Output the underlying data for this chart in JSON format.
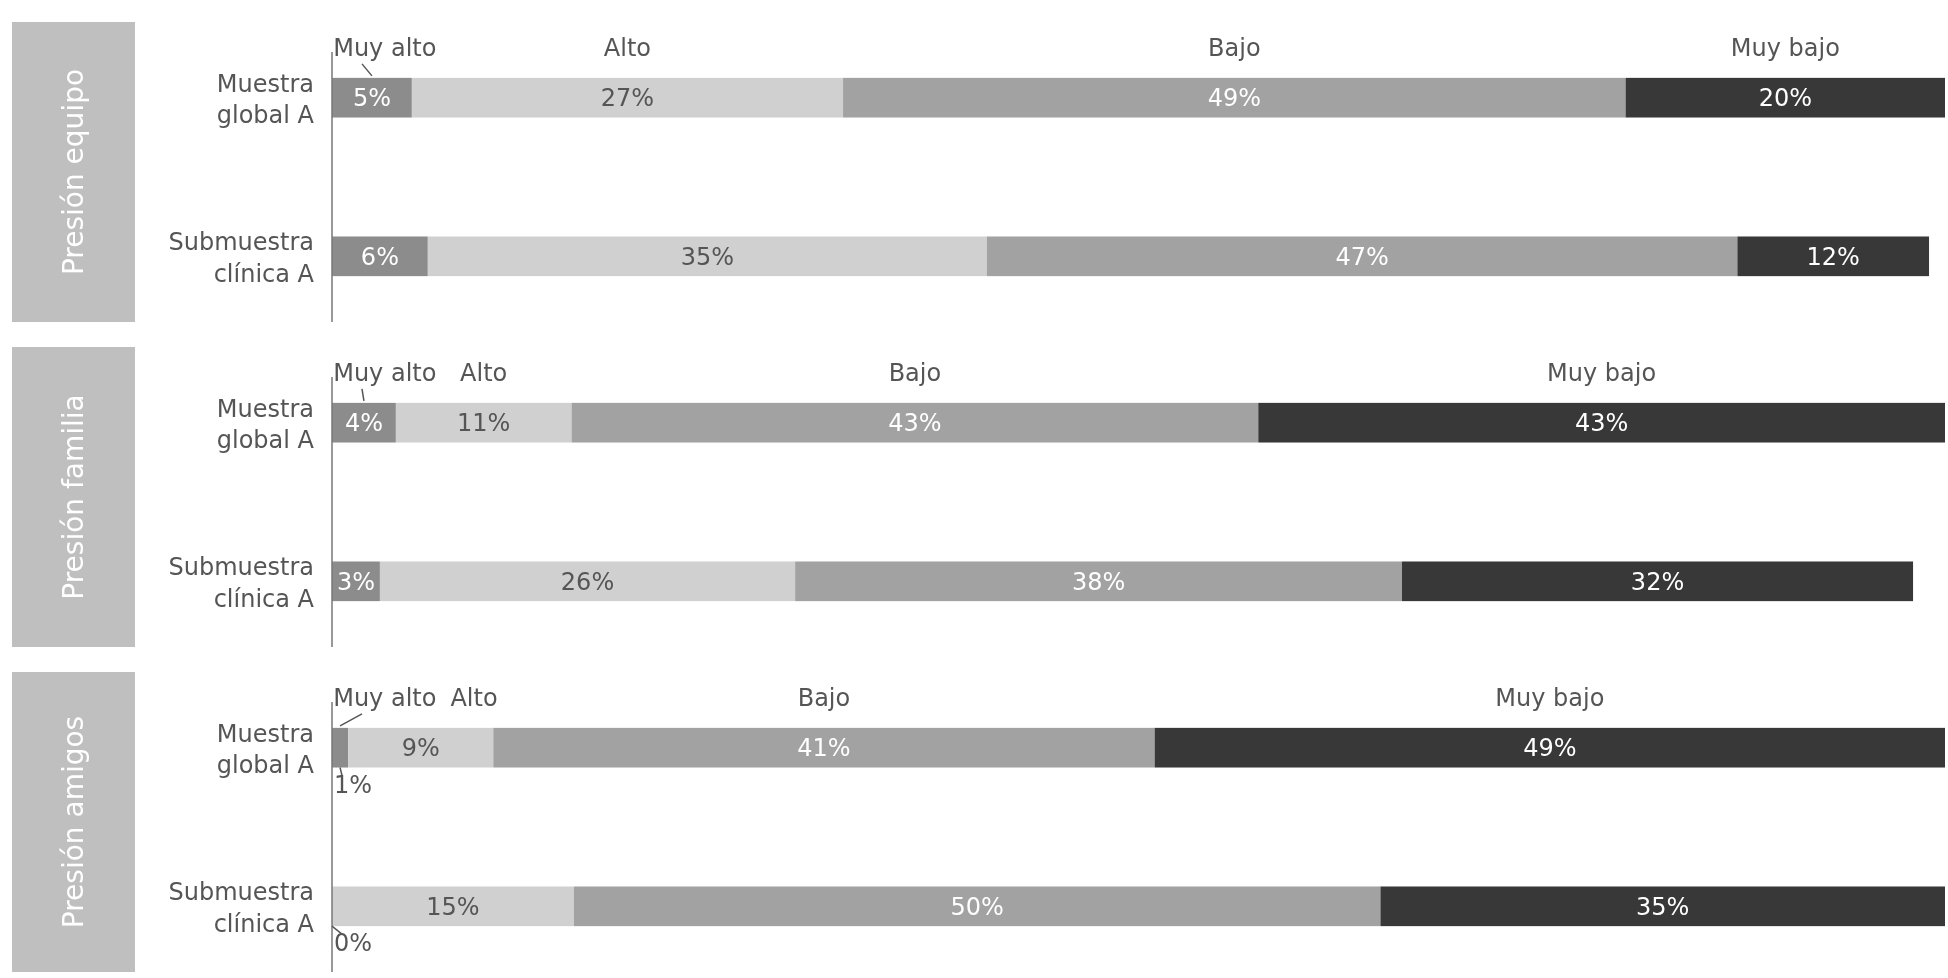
{
  "chart_data": [
    {
      "type": "bar",
      "orientation": "horizontal",
      "stacked": true,
      "title": "Presión equipo",
      "categories": [
        "Muestra global A",
        "Submuestra clínica A"
      ],
      "legend": "top",
      "series": [
        {
          "name": "Muy alto",
          "color": "#8c8c8c",
          "values": [
            5,
            6
          ],
          "value_labels": [
            "5%",
            "6%"
          ]
        },
        {
          "name": "Alto",
          "color": "#d0d0d0",
          "values": [
            27,
            35
          ],
          "value_labels": [
            "27%",
            "35%"
          ]
        },
        {
          "name": "Bajo",
          "color": "#a2a2a2",
          "values": [
            49,
            47
          ],
          "value_labels": [
            "49%",
            "47%"
          ]
        },
        {
          "name": "Muy bajo",
          "color": "#383838",
          "values": [
            20,
            12
          ],
          "value_labels": [
            "20%",
            "12%"
          ]
        }
      ]
    },
    {
      "type": "bar",
      "orientation": "horizontal",
      "stacked": true,
      "title": "Presión familia",
      "categories": [
        "Muestra global A",
        "Submuestra clínica A"
      ],
      "legend": "top",
      "series": [
        {
          "name": "Muy alto",
          "color": "#8c8c8c",
          "values": [
            4,
            3
          ],
          "value_labels": [
            "4%",
            "3%"
          ]
        },
        {
          "name": "Alto",
          "color": "#d0d0d0",
          "values": [
            11,
            26
          ],
          "value_labels": [
            "11%",
            "26%"
          ]
        },
        {
          "name": "Bajo",
          "color": "#a2a2a2",
          "values": [
            43,
            38
          ],
          "value_labels": [
            "43%",
            "38%"
          ]
        },
        {
          "name": "Muy bajo",
          "color": "#383838",
          "values": [
            43,
            32
          ],
          "value_labels": [
            "43%",
            "32%"
          ]
        }
      ]
    },
    {
      "type": "bar",
      "orientation": "horizontal",
      "stacked": true,
      "title": "Presión amigos",
      "categories": [
        "Muestra global A",
        "Submuestra clínica A"
      ],
      "legend": "top",
      "annotations": [
        {
          "text": "0%",
          "x": 0,
          "y": "Submuestra clínica A"
        }
      ],
      "series": [
        {
          "name": "Muy alto",
          "color": "#8c8c8c",
          "values": [
            1,
            0
          ],
          "value_labels": [
            "1%",
            null
          ]
        },
        {
          "name": "Alto",
          "color": "#d0d0d0",
          "values": [
            9,
            15
          ],
          "value_labels": [
            "9%",
            "15%"
          ]
        },
        {
          "name": "Bajo",
          "color": "#a2a2a2",
          "values": [
            41,
            50
          ],
          "value_labels": [
            "41%",
            "50%"
          ]
        },
        {
          "name": "Muy bajo",
          "color": "#383838",
          "values": [
            49,
            35
          ],
          "value_labels": [
            "49%",
            "35%"
          ]
        }
      ]
    }
  ]
}
